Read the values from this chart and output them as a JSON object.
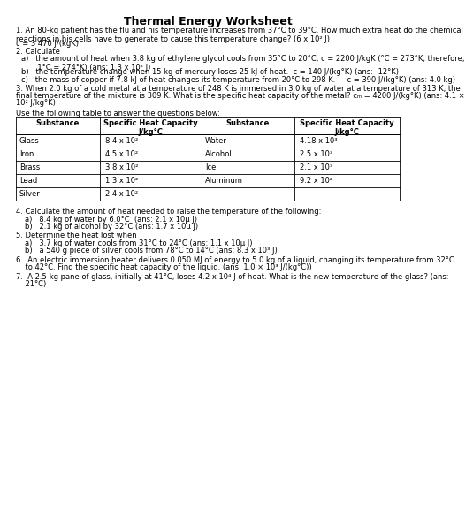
{
  "title": "Thermal Energy Worksheet",
  "background_color": "#ffffff",
  "q1": "1. An 80-kg patient has the flu and his temperature increases from 37°C to 39°C. How much extra heat do the chemical\nreactions in his cells have to generate to cause this temperature change? (6 x 10² J)",
  "q1_ans": "c = 3 470 J/(kgK)",
  "q2": "2. Calculate",
  "q2a": "a)   the amount of heat when 3.8 kg of ethylene glycol cools from 35°C to 20°C, c = 2200 J/kgK (°C = 273°K, therefore,\n       1°C = 274°K) (ans: 1.3 x 10² J)",
  "q2b": "b)   the temperature change when 15 kg of mercury loses 25 kJ of heat.  c = 140 J/(kg°K) (ans: -12°K)",
  "q2c": "c)   the mass of copper if 7.8 kJ of heat changes its temperature from 20°C to 298 K.     c = 390 J/(kg°K) (ans: 4.0 kg)",
  "q3_line1": "3. When 2.0 kg of a cold metal at a temperature of 248 K is immersed in 3.0 kg of water at a temperature of 313 K, the",
  "q3_line2": "final temperature of the mixture is 309 K. What is the specific heat capacity of the metal? cₘ = 4200 J/(kg°K) (ans: 4.1 ×",
  "q3_line3": "10² J/kg°K)",
  "table_note": "Use the following table to answer the questions below:",
  "table_headers_left1": "Substance",
  "table_headers_left2": "Specific Heat Capacity",
  "table_headers_left2b": "J/kg°C",
  "table_headers_right1": "Substance",
  "table_headers_right2": "Specific Heat Capacity",
  "table_headers_right2b": "J/kg°C",
  "table_data": [
    [
      "Glass",
      "8.4 x 10²",
      "Water",
      "4.18 x 10³"
    ],
    [
      "Iron",
      "4.5 x 10²",
      "Alcohol",
      "2.5 x 10³"
    ],
    [
      "Brass",
      "3.8 x 10²",
      "Ice",
      "2.1 x 10³"
    ],
    [
      "Lead",
      "1.3 x 10²",
      "Aluminum",
      "9.2 x 10²"
    ],
    [
      "Silver",
      "2.4 x 10²",
      "",
      ""
    ]
  ],
  "q4": "4. Calculate the amount of heat needed to raise the temperature of the following:",
  "q4a": "a)   8.4 kg of water by 6.0°C  (ans: 2.1 x 10µ J)",
  "q4b": "b)   2.1 kg of alcohol by 32°C (ans: 1.7 x 10µ J)",
  "q5": "5. Determine the heat lost when",
  "q5a": "a)   3.7 kg of water cools from 31°C to 24°C (ans: 1.1 x 10µ J)",
  "q5b": "b)   a 540 g piece of silver cools from 78°C to 14°C (ans: 8.3 x 10³ J)",
  "q6_line1": "6.  An electric immersion heater delivers 0.050 MJ of energy to 5.0 kg of a liquid, changing its temperature from 32°C",
  "q6_line2": "    to 42°C. Find the specific heat capacity of the liquid. (ans: 1.0 × 10³ J/(kg°C))",
  "q7_line1": "7.  A 2.5-kg pane of glass, initially at 41°C, loses 4.2 x 10⁴ J of heat. What is the new temperature of the glass? (ans:",
  "q7_line2": "    21°C)",
  "font_body": 6.0,
  "font_title": 9.0
}
